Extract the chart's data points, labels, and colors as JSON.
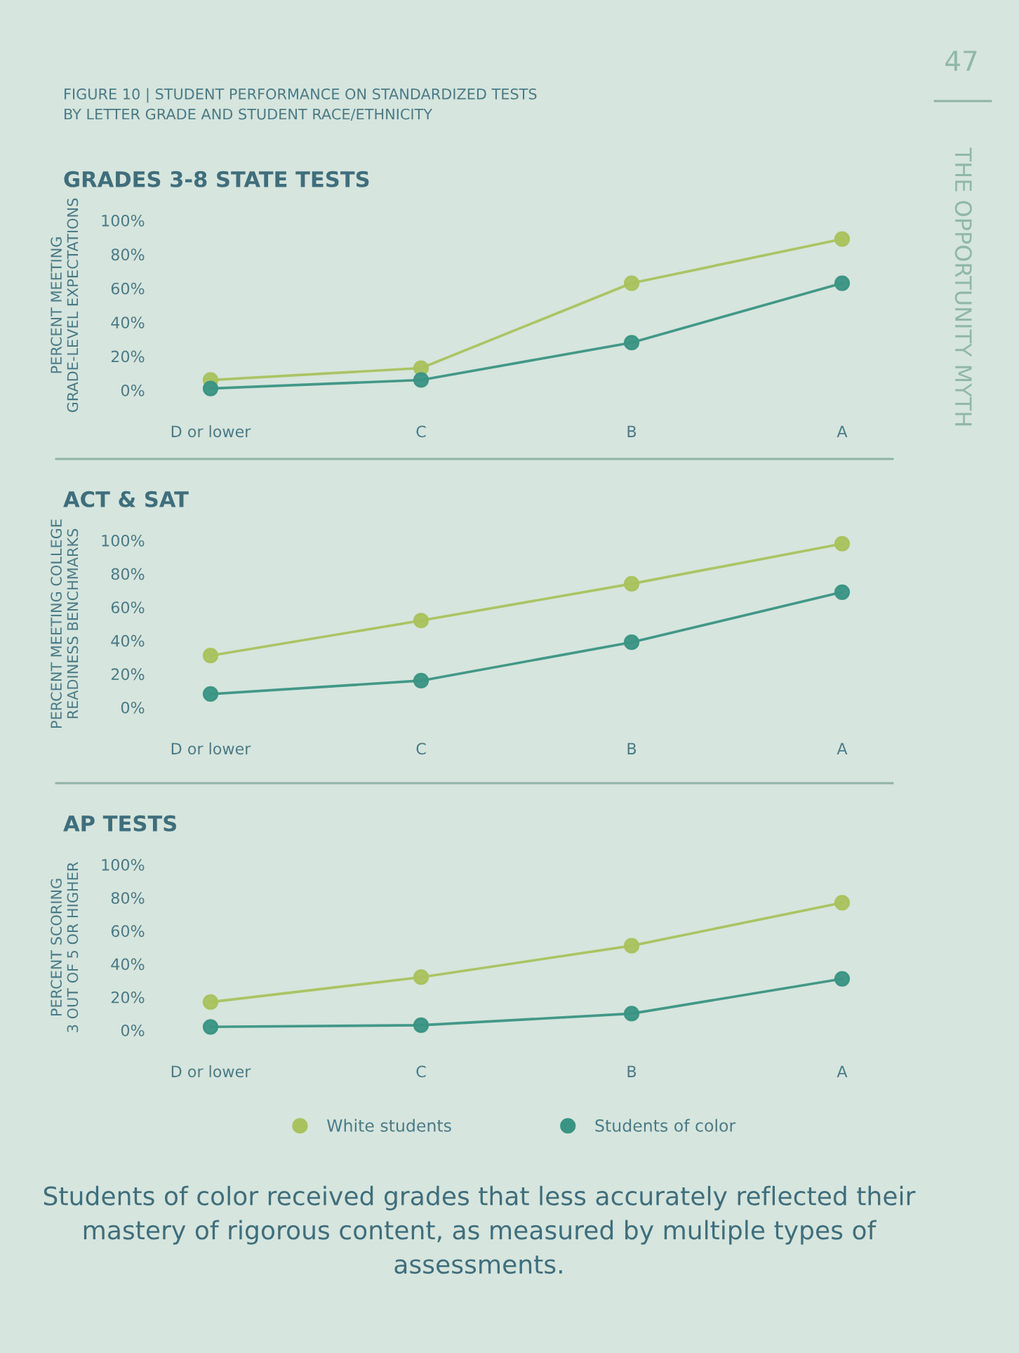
{
  "chart_data": [
    {
      "type": "line",
      "title": "GRADES 3-8 STATE TESTS",
      "ylabel": "PERCENT MEETING\nGRADE-LEVEL EXPECTATIONS",
      "annotations": [
        "FIGURE 10 | STUDENT PERFORMANCE ON STANDARDIZED TESTS\nBY LETTER GRADE AND STUDENT RACE/ETHNICITY",
        "47",
        "THE OPPORTUNITY MYTH"
      ],
      "categories": [
        "D or lower",
        "C",
        "B",
        "A"
      ],
      "series": [
        {
          "color": "#a9c25d",
          "values": [
            6,
            13,
            63,
            89
          ]
        },
        {
          "color": "#3a9483",
          "values": [
            1,
            6,
            28,
            63
          ]
        }
      ],
      "ylim": [
        0,
        100
      ],
      "yticks": [
        {
          "value": 0,
          "label": "0%"
        },
        {
          "value": 20,
          "label": "20%"
        },
        {
          "value": 40,
          "label": "40%"
        },
        {
          "value": 60,
          "label": "60%"
        },
        {
          "value": 80,
          "label": "80%"
        },
        {
          "value": 100,
          "label": "100%"
        }
      ],
      "grid": false,
      "legend": false,
      "marker": "circle",
      "line_style": "solid"
    },
    {
      "type": "line",
      "title": "ACT & SAT",
      "ylabel": "PERCENT MEETING COLLEGE\nREADINESS BENCHMARKS",
      "categories": [
        "D or lower",
        "C",
        "B",
        "A"
      ],
      "series": [
        {
          "color": "#a9c25d",
          "values": [
            31,
            52,
            74,
            98
          ]
        },
        {
          "color": "#3a9483",
          "values": [
            8,
            16,
            39,
            69
          ]
        }
      ],
      "ylim": [
        0,
        100
      ],
      "yticks": [
        {
          "value": 0,
          "label": "0%"
        },
        {
          "value": 20,
          "label": "20%"
        },
        {
          "value": 40,
          "label": "40%"
        },
        {
          "value": 60,
          "label": "60%"
        },
        {
          "value": 80,
          "label": "80%"
        },
        {
          "value": 100,
          "label": "100%"
        }
      ],
      "grid": false,
      "legend": false,
      "marker": "circle",
      "line_style": "solid"
    },
    {
      "type": "line",
      "title": "AP TESTS",
      "ylabel": "PERCENT SCORING\n3 OUT OF 5 OR HIGHER",
      "annotations": [
        "Students of color received grades that less accurately reflected their mastery of rigorous content, as measured by multiple types of assessments."
      ],
      "categories": [
        "D or lower",
        "C",
        "B",
        "A"
      ],
      "series": [
        {
          "name": "White students",
          "color": "#a9c25d",
          "values": [
            17,
            32,
            51,
            77
          ]
        },
        {
          "name": "Students of color",
          "color": "#3a9483",
          "values": [
            2,
            3,
            10,
            31
          ]
        }
      ],
      "ylim": [
        0,
        100
      ],
      "yticks": [
        {
          "value": 0,
          "label": "0%"
        },
        {
          "value": 20,
          "label": "20%"
        },
        {
          "value": 40,
          "label": "40%"
        },
        {
          "value": 60,
          "label": "60%"
        },
        {
          "value": 80,
          "label": "80%"
        },
        {
          "value": 100,
          "label": "100%"
        }
      ],
      "grid": false,
      "legend": "bottom",
      "marker": "circle",
      "line_style": "solid"
    }
  ]
}
